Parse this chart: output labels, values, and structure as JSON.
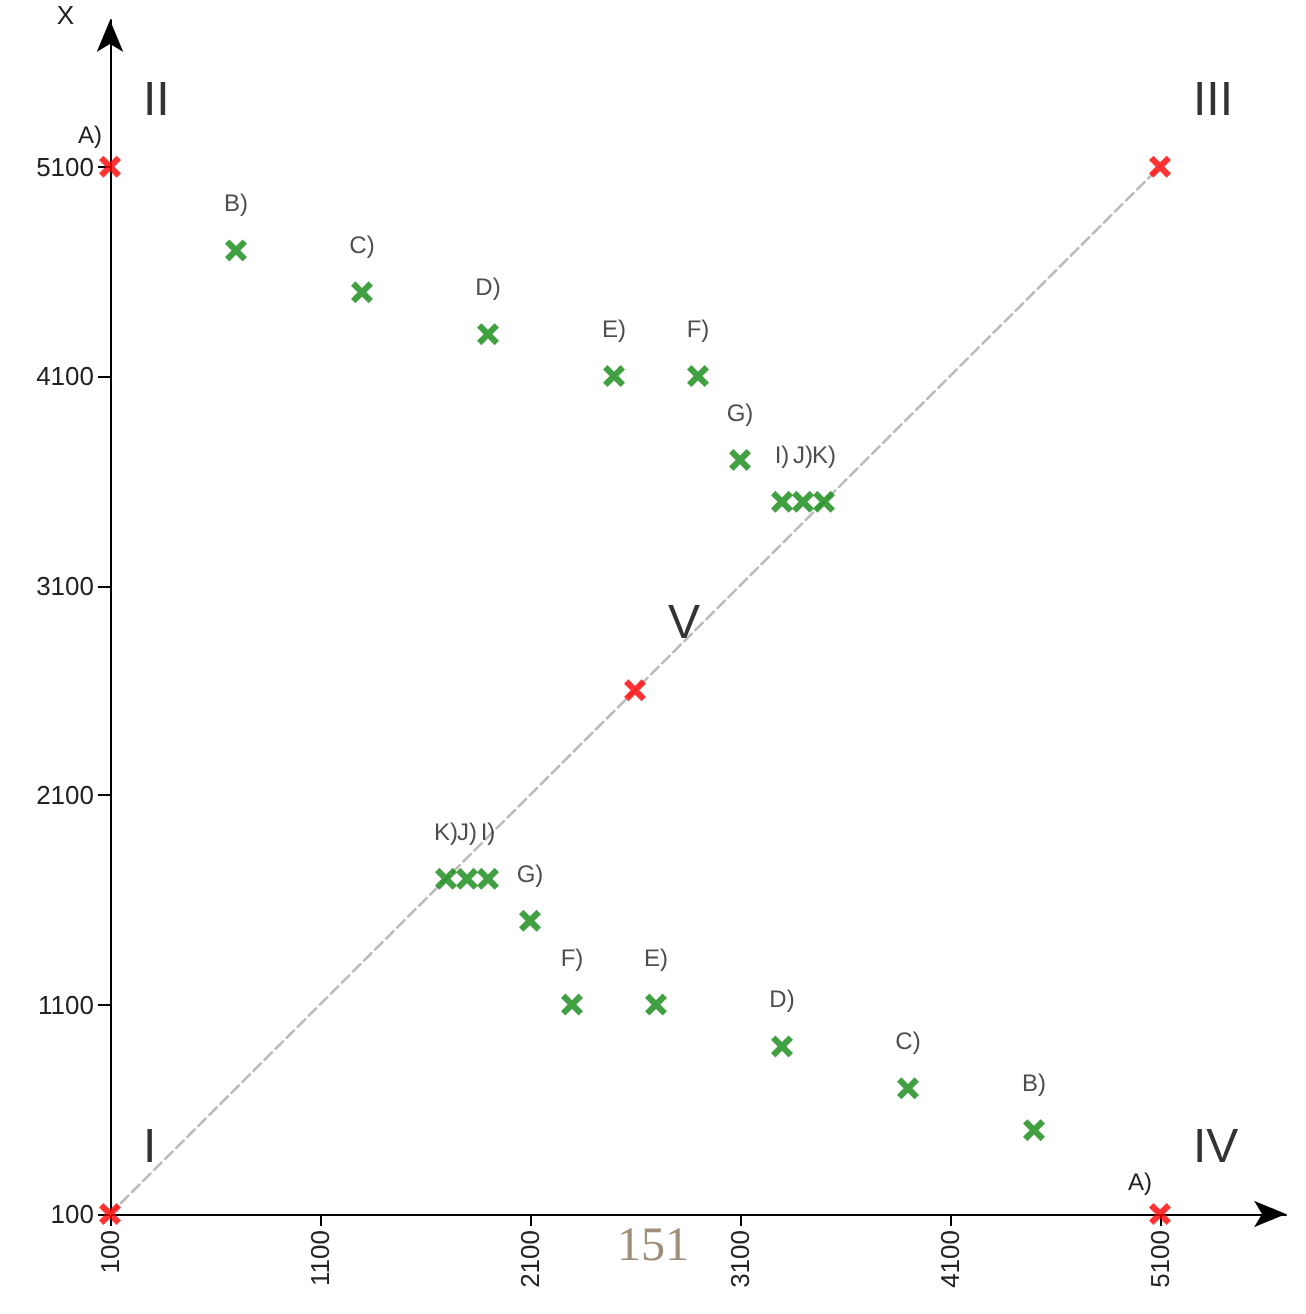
{
  "chart_data": {
    "type": "scatter",
    "ylabel": "X",
    "xlim": [
      100,
      5700
    ],
    "ylim": [
      100,
      5800
    ],
    "xticks": [
      100,
      1100,
      2100,
      3100,
      4100,
      5100
    ],
    "yticks": [
      100,
      1100,
      2100,
      3100,
      4100,
      5100
    ],
    "grid": false,
    "marker": "cross",
    "series": [
      {
        "color": "#ff0000",
        "x": [
          100,
          100,
          5100,
          5100,
          2600
        ],
        "values": [
          100,
          5100,
          5100,
          100,
          2600
        ],
        "value_labels": [
          "I",
          "II",
          "III",
          "IV",
          "V"
        ]
      },
      {
        "color": "#118811",
        "x": [
          700,
          1300,
          1900,
          2500,
          2900,
          3100,
          3300,
          3400,
          3500
        ],
        "values": [
          4700,
          4500,
          4300,
          4100,
          4100,
          3700,
          3500,
          3500,
          3500
        ],
        "value_labels": [
          "B)",
          "C)",
          "D)",
          "E)",
          "F)",
          "G)",
          "I)",
          "J)",
          "K)"
        ]
      },
      {
        "color": "#118811",
        "x": [
          4500,
          3900,
          3300,
          2700,
          2300,
          2100,
          1900,
          1800,
          1700
        ],
        "values": [
          500,
          700,
          900,
          1100,
          1100,
          1500,
          1700,
          1700,
          1700
        ],
        "value_labels": [
          "B)",
          "C)",
          "D)",
          "E)",
          "F)",
          "G)",
          "I)",
          "J)",
          "K)"
        ]
      },
      {
        "type": "line",
        "color": "#bbbbbb",
        "line_style": "dashed",
        "marker": "none",
        "x": [
          100,
          5100
        ],
        "values": [
          100,
          5100
        ]
      }
    ],
    "annotations": [
      {
        "text": "A)",
        "x": 100,
        "y": 5100
      },
      {
        "text": "A)",
        "x": 5100,
        "y": 100
      },
      "151"
    ]
  }
}
